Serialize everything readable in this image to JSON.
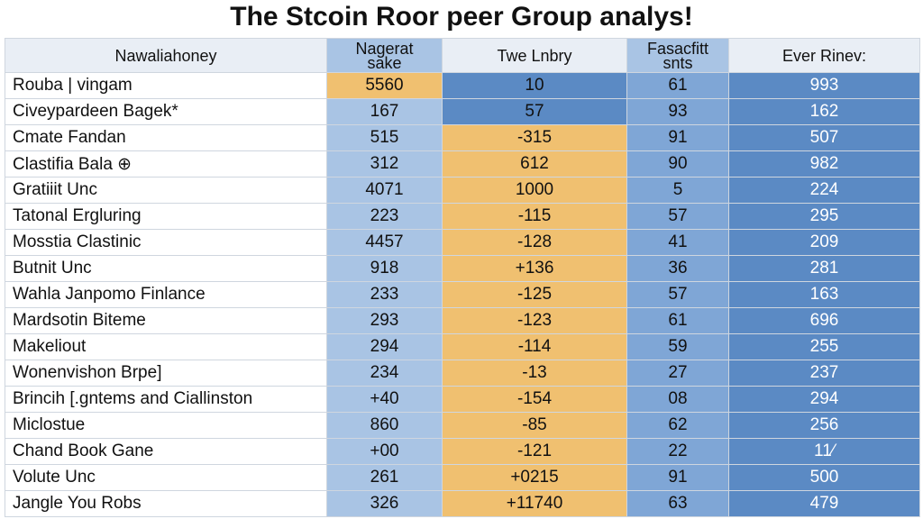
{
  "header": {
    "title": "The Stcoin Roor peer Group analys!"
  },
  "table": {
    "columns": [
      "Nawaliahoney",
      "Nagerat sake",
      "Twe Lnbry",
      "Fasacfitt snts",
      "Ever Rinev:"
    ],
    "rows": [
      [
        "Rouba | vingam",
        "5560",
        "10",
        "61",
        "993"
      ],
      [
        "Civeypardeen Bagek*",
        "167",
        "57",
        "93",
        "162"
      ],
      [
        "Cmate Fandan",
        "515",
        "-315",
        "91",
        "507"
      ],
      [
        "Clastifia Bala ⊕",
        "312",
        "612",
        "90",
        "982"
      ],
      [
        "Gratiiit Unc",
        "4071",
        "1000",
        "5",
        "224"
      ],
      [
        "Tatonal Ergluring",
        "223",
        "-115",
        "57",
        "295"
      ],
      [
        "Mosstia Clastinic",
        "4457",
        "-128",
        "41",
        "209"
      ],
      [
        "Butnit Unc",
        "918",
        "+136",
        "36",
        "281"
      ],
      [
        "Wahla Janpomo Finlance",
        "233",
        "-125",
        "57",
        "163"
      ],
      [
        "Mardsotin Biteme",
        "293",
        "-123",
        "61",
        "696"
      ],
      [
        "Makeliout",
        "294",
        "-114",
        "59",
        "255"
      ],
      [
        "Wonenvishon Brpe]",
        "234",
        "-13",
        "27",
        "237"
      ],
      [
        "Brincih [.gntems and Ciallinston",
        "+40",
        "-154",
        "08",
        "294"
      ],
      [
        "Miclostue",
        "860",
        "-85",
        "62",
        "256"
      ],
      [
        "Chand Book Gane",
        "+00",
        "-121",
        "22",
        "11⁄"
      ],
      [
        "Volute Unc",
        "261",
        "+0215",
        "91",
        "500"
      ],
      [
        "Jangle You Robs",
        "326",
        "+11740",
        "63",
        "479"
      ]
    ]
  }
}
